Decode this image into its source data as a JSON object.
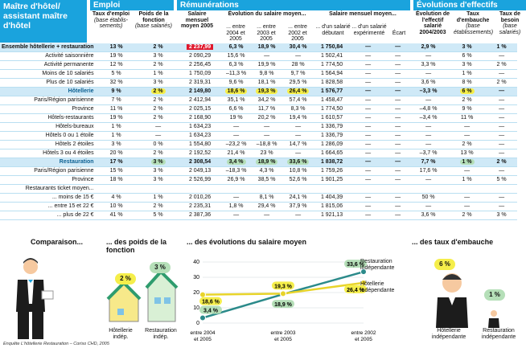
{
  "title": "Maître d'hôtel/ assistant maître d'hôtel",
  "sections": {
    "emploi": "Emploi",
    "remunerations": "Rémunérations",
    "evolutions": "Évolutions d'effectifs"
  },
  "columns": {
    "taux_emploi": {
      "t": "Taux d'emploi",
      "s": "(base établis-sements)"
    },
    "poids": {
      "t": "Poids de la fonction",
      "s": "(base salariés)"
    },
    "salaire_moyen": {
      "t": "Salaire mensuel moyen 2005"
    },
    "evol": {
      "t": "Évolution du salaire moyen...",
      "c1": "... entre 2004 et 2005",
      "c2": "... entre 2003 et 2005",
      "c3": "... entre 2002 et 2005"
    },
    "moyen": {
      "t": "Salaire mensuel moyen...",
      "c1": "... d'un salarié débutant",
      "c2": "... d'un salarié expérimenté",
      "c3": "Écart"
    },
    "evol_eff": {
      "t": "Évolution de l'effectif salarié 2004/2003"
    },
    "taux_emb": {
      "t": "Taux d'embauche",
      "s": "(base établissements)"
    },
    "taux_besoin": {
      "t": "Taux de besoin",
      "s": "(base salariés)"
    }
  },
  "rows": [
    {
      "l": "Ensemble hôtellerie + restauration",
      "c": [
        "13 %",
        "2 %",
        "2 237,99",
        "6,3 %",
        "18,9 %",
        "30,4 %",
        "1 750,84",
        "—",
        "—",
        "2,9 %",
        "3 %",
        "1 %"
      ],
      "k": "first"
    },
    {
      "l": "Activité saisonnière",
      "c": [
        "19 %",
        "3 %",
        "2 090,29",
        "15,6 %",
        "—",
        "—",
        "1 502,41",
        "—",
        "—",
        "—",
        "6 %",
        "—"
      ]
    },
    {
      "l": "Activité permanente",
      "c": [
        "12 %",
        "2 %",
        "2 256,45",
        "6,3 %",
        "19,9 %",
        "28 %",
        "1 774,50",
        "—",
        "—",
        "3,3 %",
        "3 %",
        "2 %"
      ]
    },
    {
      "l": "Moins de 10 salariés",
      "c": [
        "5 %",
        "1 %",
        "1 750,09",
        "–11,3 %",
        "9,8 %",
        "9,7 %",
        "1 564,94",
        "—",
        "—",
        "—",
        "1 %",
        "—"
      ]
    },
    {
      "l": "Plus de 10 salariés",
      "c": [
        "32 %",
        "3 %",
        "2 319,31",
        "9,6 %",
        "18,1 %",
        "29,5 %",
        "1 828,58",
        "—",
        "—",
        "3,6 %",
        "8 %",
        "2 %"
      ]
    },
    {
      "l": "Hôtellerie",
      "c": [
        "9 %",
        "2 %",
        "2 149,80",
        "18,6 %",
        "19,3 %",
        "26,4 %",
        "1 576,77",
        "—",
        "—",
        "–3,3 %",
        "6 %",
        "—"
      ],
      "k": "strong"
    },
    {
      "l": "Paris/Région parisienne",
      "c": [
        "7 %",
        "2 %",
        "2 412,94",
        "35,1 %",
        "34,2 %",
        "57,4 %",
        "1 458,47",
        "—",
        "—",
        "—",
        "2 %",
        "—"
      ]
    },
    {
      "l": "Province",
      "c": [
        "11 %",
        "2 %",
        "2 025,15",
        "6,6 %",
        "11,7 %",
        "8,3 %",
        "1 774,50",
        "—",
        "—",
        "–4,8 %",
        "9 %",
        "—"
      ]
    },
    {
      "l": "Hôtels-restaurants",
      "c": [
        "19 %",
        "2 %",
        "2 168,90",
        "19 %",
        "20,2 %",
        "19,4 %",
        "1 610,57",
        "—",
        "—",
        "–3,4 %",
        "11 %",
        "—"
      ]
    },
    {
      "l": "Hôtels-bureaux",
      "c": [
        "1 %",
        "—",
        "1 634,23",
        "—",
        "—",
        "—",
        "1 336,79",
        "—",
        "—",
        "—",
        "—",
        "—"
      ]
    },
    {
      "l": "Hôtels 0 ou 1 étoile",
      "c": [
        "1 %",
        "—",
        "1 634,23",
        "—",
        "—",
        "—",
        "1 336,79",
        "—",
        "—",
        "—",
        "—",
        "—"
      ]
    },
    {
      "l": "Hôtels 2 étoiles",
      "c": [
        "3 %",
        "0 %",
        "1 554,80",
        "–23,2 %",
        "–18,8 %",
        "14,7 %",
        "1 286,09",
        "—",
        "—",
        "—",
        "2 %",
        "—"
      ]
    },
    {
      "l": "Hôtels 3 ou 4 étoiles",
      "c": [
        "20 %",
        "2 %",
        "2 192,52",
        "21,4 %",
        "23 %",
        "—",
        "1 664,65",
        "—",
        "—",
        "–3,7 %",
        "13 %",
        "—"
      ]
    },
    {
      "l": "Restauration",
      "c": [
        "17 %",
        "3 %",
        "2 308,54",
        "3,4 %",
        "18,9 %",
        "33,6 %",
        "1 838,72",
        "—",
        "—",
        "7,7 %",
        "1 %",
        "2 %"
      ],
      "k": "strong"
    },
    {
      "l": "Paris/Région parisienne",
      "c": [
        "15 %",
        "3 %",
        "2 049,13",
        "–18,3 %",
        "4,3 %",
        "10,8 %",
        "1 759,26",
        "—",
        "—",
        "17,6 %",
        "—",
        "—"
      ]
    },
    {
      "l": "Province",
      "c": [
        "18 %",
        "3 %",
        "2 526,99",
        "26,9 %",
        "38,5 %",
        "52,6 %",
        "1 901,25",
        "—",
        "—",
        "—",
        "1 %",
        "5 %"
      ]
    },
    {
      "l": "Restaurants ticket moyen...",
      "c": [
        "",
        "",
        "",
        "",
        "",
        "",
        "",
        "",
        "",
        "",
        "",
        ""
      ]
    },
    {
      "l": "... moins de 15 €",
      "c": [
        "4 %",
        "1 %",
        "2 010,26",
        "—",
        "8,1 %",
        "24,1 %",
        "1 404,39",
        "—",
        "—",
        "50 %",
        "—",
        "—"
      ]
    },
    {
      "l": "... entre 15 et 22 €",
      "c": [
        "10 %",
        "2 %",
        "2 235,31",
        "1,8 %",
        "29,4 %",
        "37,9 %",
        "1 815,06",
        "—",
        "—",
        "—",
        "—",
        "—"
      ]
    },
    {
      "l": "... plus de 22 €",
      "c": [
        "41 %",
        "5 %",
        "2 387,36",
        "—",
        "—",
        "—",
        "1 921,13",
        "—",
        "—",
        "3,6 %",
        "2 %",
        "3 %"
      ]
    }
  ],
  "bottom": {
    "comparaison": "Comparaison...",
    "poids_title": "... des poids de la fonction",
    "evol_title": "... des évolutions du salaire moyen",
    "emb_title": "... des taux d'embauche",
    "hotel_lbl": "Hôtellerie indép.",
    "resto_lbl": "Restauration indép.",
    "hotel_lbl2": "Hôtellerie indépendante",
    "resto_lbl2": "Restauration indépendante",
    "poids_h": "2 %",
    "poids_r": "3 %",
    "emb_h": "6 %",
    "emb_r": "1 %",
    "source": "Enquête L'hôtellerie Restauration – Coriso CHD, 2005"
  },
  "chart_data": {
    "type": "line",
    "categories": [
      "entre 2004 et 2005",
      "entre 2003 et 2005",
      "entre 2002 et 2005"
    ],
    "ylim": [
      0,
      40
    ],
    "yticks": [
      "0",
      "10",
      "20",
      "30",
      "40"
    ],
    "series": [
      {
        "name": "Restauration indépendante",
        "values": [
          3.4,
          18.9,
          33.6
        ],
        "labels": [
          "3,4 %",
          "18,9 %",
          "33,6 %"
        ],
        "color": "#2b8a8a"
      },
      {
        "name": "Hôtellerie indépendante",
        "values": [
          18.6,
          19.3,
          26.4
        ],
        "labels": [
          "18,6 %",
          "19,3 %",
          "26,4 %"
        ],
        "color": "#e8d42a"
      }
    ]
  },
  "colors": {
    "brand": "#1aa3dd",
    "hl_yellow": "#f5ee4a",
    "hl_green": "#b5dfb8",
    "hl_red": "#e0182d"
  }
}
